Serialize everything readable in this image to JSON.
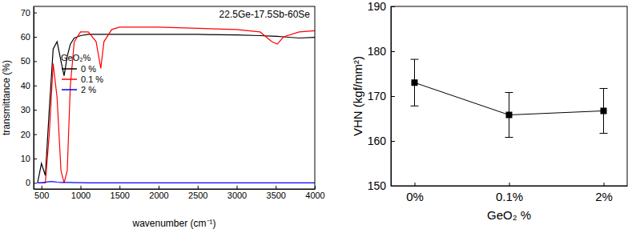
{
  "chart_data": [
    {
      "type": "line",
      "title": "22.5Ge-17.5Sb-60Se",
      "x_label": "wavenumber (cm⁻¹)",
      "y_label": "transmittance (%)",
      "legend_title": "GeO₂%",
      "legend": "upper left",
      "x": [
        450,
        500,
        550,
        600,
        650,
        700,
        750,
        790,
        830,
        870,
        920,
        1000,
        1100,
        1200,
        1260,
        1300,
        1400,
        1500,
        2000,
        2500,
        3000,
        3300,
        3450,
        3520,
        3600,
        3800,
        4000
      ],
      "xlim": [
        400,
        4000
      ],
      "xticks": [
        500,
        1000,
        1500,
        2000,
        2500,
        3000,
        3500,
        4000
      ],
      "ylim": [
        -2.5,
        72.5
      ],
      "yticks": [
        0,
        10,
        20,
        30,
        40,
        50,
        60,
        70
      ],
      "series": [
        {
          "name": "0 %",
          "color": "#000000",
          "values": [
            0,
            8,
            3,
            30,
            55,
            58,
            50,
            44,
            52,
            57,
            59.5,
            60.5,
            61,
            61,
            61,
            61,
            61,
            61,
            61,
            61,
            60.8,
            60.5,
            60.3,
            60.2,
            60,
            59.5,
            59.8
          ]
        },
        {
          "name": "0.1 %",
          "color": "#ff0000",
          "values": [
            0,
            0,
            0,
            20,
            49,
            35,
            5,
            0,
            5,
            40,
            58,
            62,
            62,
            58,
            47,
            58,
            63,
            64,
            64,
            63.5,
            63,
            62,
            58,
            57,
            60,
            62,
            62.5
          ]
        },
        {
          "name": "2 %",
          "color": "#0000ff",
          "values": [
            0,
            0,
            0.3,
            0.5,
            0.5,
            0.3,
            0.2,
            0.2,
            0.2,
            0.2,
            0.1,
            0.1,
            0,
            0,
            0,
            0,
            0,
            0,
            0,
            0,
            0,
            0,
            0,
            0,
            0,
            0,
            0
          ]
        }
      ]
    },
    {
      "type": "line",
      "marker": "square",
      "color": "#000000",
      "x_label": "GeO₂ %",
      "y_label": "VHN (kgf/mm²)",
      "categories": [
        "0%",
        "0.1%",
        "2%"
      ],
      "values": [
        173,
        165.8,
        166.7
      ],
      "errors": [
        5.2,
        5,
        5
      ],
      "ylim": [
        150,
        190
      ],
      "yticks": [
        150,
        160,
        170,
        180,
        190
      ]
    }
  ]
}
